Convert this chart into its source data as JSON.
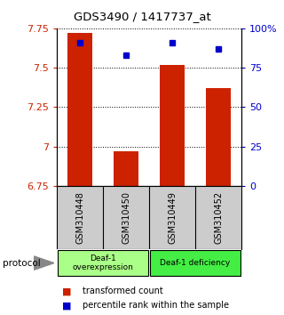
{
  "title": "GDS3490 / 1417737_at",
  "samples": [
    "GSM310448",
    "GSM310450",
    "GSM310449",
    "GSM310452"
  ],
  "bar_values": [
    7.72,
    6.97,
    7.52,
    7.37
  ],
  "percentile_values": [
    91,
    83,
    91,
    87
  ],
  "bar_color": "#cc2200",
  "marker_color": "#0000cc",
  "ylim_left": [
    6.75,
    7.75
  ],
  "ylim_right": [
    0,
    100
  ],
  "yticks_left": [
    6.75,
    7.0,
    7.25,
    7.5,
    7.75
  ],
  "ytick_labels_left": [
    "6.75",
    "7",
    "7.25",
    "7.5",
    "7.75"
  ],
  "yticks_right": [
    0,
    25,
    50,
    75,
    100
  ],
  "ytick_labels_right": [
    "0",
    "25",
    "50",
    "75",
    "100%"
  ],
  "groups": [
    {
      "label": "Deaf-1\noverexpression",
      "color": "#aaff88"
    },
    {
      "label": "Deaf-1 deficiency",
      "color": "#44ee44"
    }
  ],
  "legend": [
    {
      "label": "transformed count",
      "color": "#cc2200"
    },
    {
      "label": "percentile rank within the sample",
      "color": "#0000cc"
    }
  ],
  "sample_box_color": "#cccccc",
  "bar_width": 0.55
}
